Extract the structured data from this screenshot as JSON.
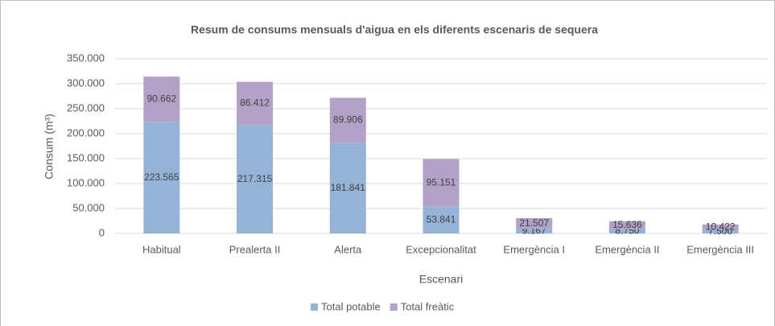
{
  "chart_data": {
    "type": "stacked_bar",
    "title": "Resum de consums mensuals d'aigua en els diferents escenaris de sequera",
    "x_label": "Escenari",
    "y_label": "Consum (m³)",
    "categories": [
      "Habitual",
      "Prealerta II",
      "Alerta",
      "Excepcionalitat",
      "Emergència I",
      "Emergència II",
      "Emergència III"
    ],
    "series": [
      {
        "name": "Total potable",
        "color": "#95b3d7",
        "values": [
          223565,
          217315,
          181841,
          53841,
          9167,
          8750,
          7500
        ],
        "value_labels": [
          "223.565",
          "217.315",
          "181.841",
          "53.841",
          "9.167",
          "8.750",
          "7.500"
        ]
      },
      {
        "name": "Total freàtic",
        "color": "#b3a2c7",
        "values": [
          90662,
          86412,
          89906,
          95151,
          21507,
          15636,
          10422
        ],
        "value_labels": [
          "90.662",
          "86.412",
          "89.906",
          "95.151",
          "21.507",
          "15.636",
          "10.422"
        ]
      }
    ],
    "ylim": [
      0,
      350000
    ],
    "yticks": [
      0,
      {
        "value": 50000,
        "label": "50.000"
      },
      {
        "value": 100000,
        "label": "100.000"
      },
      {
        "value": 150000,
        "label": "150.000"
      },
      {
        "value": 200000,
        "label": "200.000"
      },
      {
        "value": 250000,
        "label": "250.000"
      },
      {
        "value": 300000,
        "label": "300.000"
      },
      {
        "value": 350000,
        "label": "350.000"
      }
    ],
    "grid": true,
    "legend": "bottom"
  }
}
